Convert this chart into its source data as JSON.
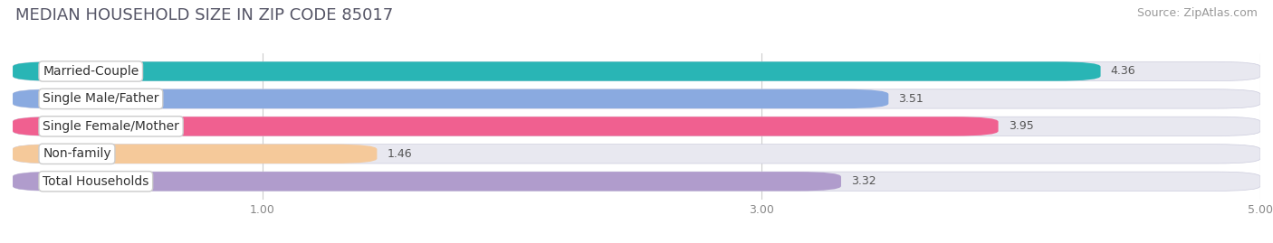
{
  "title": "MEDIAN HOUSEHOLD SIZE IN ZIP CODE 85017",
  "source": "Source: ZipAtlas.com",
  "categories": [
    "Married-Couple",
    "Single Male/Father",
    "Single Female/Mother",
    "Non-family",
    "Total Households"
  ],
  "values": [
    4.36,
    3.51,
    3.95,
    1.46,
    3.32
  ],
  "bar_colors": [
    "#29b5b5",
    "#8aaae0",
    "#f06090",
    "#f5c99a",
    "#b09ccc"
  ],
  "background_color": "#ffffff",
  "bar_background_color": "#e8e8f0",
  "xlim_min": 0,
  "xlim_max": 5.0,
  "xticks": [
    1.0,
    3.0,
    5.0
  ],
  "title_fontsize": 13,
  "source_fontsize": 9,
  "label_fontsize": 10,
  "value_fontsize": 9
}
